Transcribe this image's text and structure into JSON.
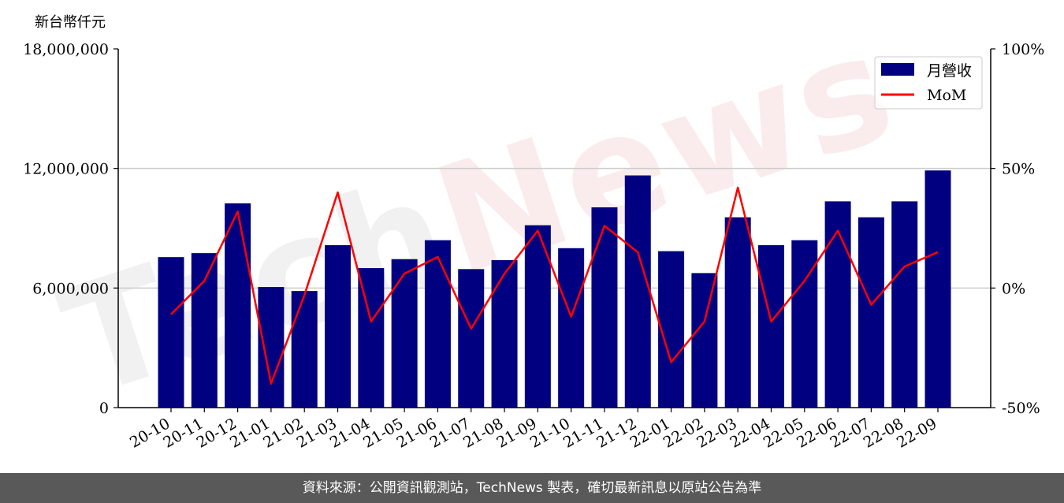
{
  "unit_label": "新台幣仟元",
  "watermark": {
    "part1": "Tech",
    "part2": "News"
  },
  "footer_text": "資料來源：公開資訊觀測站，TechNews 製表，確切最新訊息以原站公告為準",
  "colors": {
    "bar": "#000080",
    "line": "#ff0000",
    "grid": "#cccccc",
    "footer_bg": "#595959"
  },
  "chart_data": {
    "type": "bar",
    "categories": [
      "20-10",
      "20-11",
      "20-12",
      "21-01",
      "21-02",
      "21-03",
      "21-04",
      "21-05",
      "21-06",
      "21-07",
      "21-08",
      "21-09",
      "21-10",
      "21-11",
      "21-12",
      "22-01",
      "22-02",
      "22-03",
      "22-04",
      "22-05",
      "22-06",
      "22-07",
      "22-08",
      "22-09"
    ],
    "series": [
      {
        "name": "月營收",
        "type": "bar",
        "axis": "left",
        "values": [
          7550000,
          7750000,
          10250000,
          6050000,
          5850000,
          8150000,
          7000000,
          7450000,
          8400000,
          6950000,
          7400000,
          9150000,
          8000000,
          10050000,
          11650000,
          7850000,
          6750000,
          9550000,
          8150000,
          8400000,
          10350000,
          9550000,
          10350000,
          11900000
        ]
      },
      {
        "name": "MoM",
        "type": "line",
        "axis": "right",
        "values": [
          -11,
          3,
          32,
          -40,
          -3,
          40,
          -14,
          6,
          13,
          -17,
          6,
          24,
          -12,
          26,
          15,
          -31,
          -14,
          42,
          -14,
          3,
          24,
          -7,
          9,
          15
        ]
      }
    ],
    "y_left": {
      "min": 0,
      "max": 18000000,
      "ticks": [
        0,
        6000000,
        12000000,
        18000000
      ],
      "tick_labels": [
        "0",
        "6,000,000",
        "12,000,000",
        "18,000,000"
      ]
    },
    "y_right": {
      "min": -50,
      "max": 100,
      "ticks": [
        -50,
        0,
        50,
        100
      ],
      "tick_labels": [
        "-50%",
        "0%",
        "50%",
        "100%"
      ]
    },
    "gridlines": [
      6000000,
      12000000
    ],
    "legend": {
      "position": "top-right",
      "items": [
        "月營收",
        "MoM"
      ]
    }
  }
}
